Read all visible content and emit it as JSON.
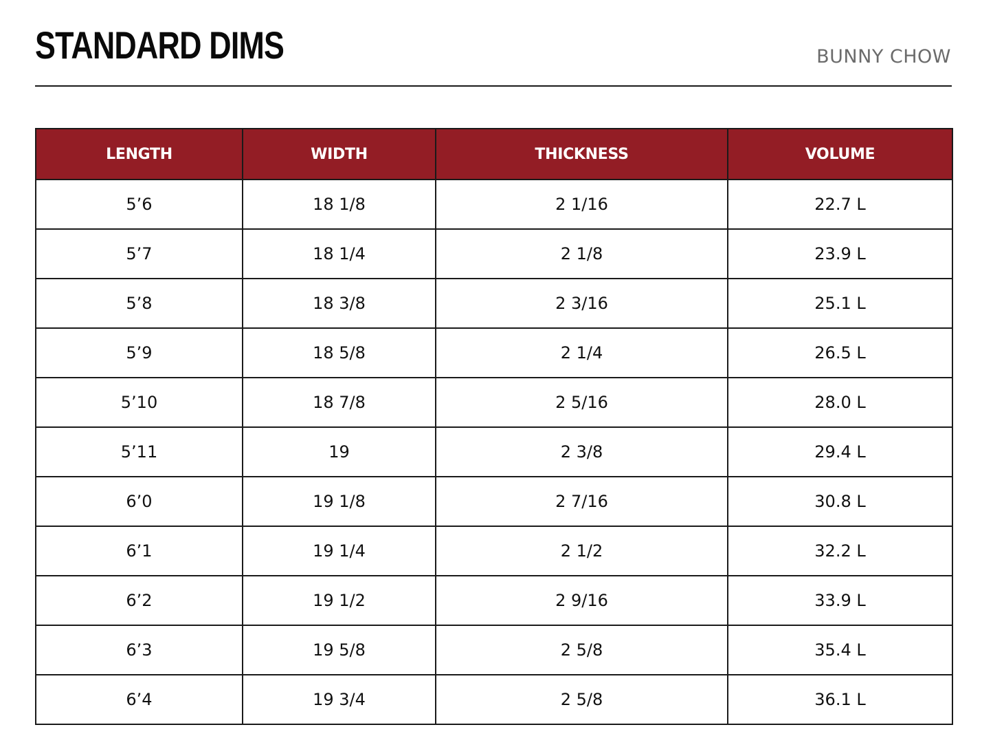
{
  "header": {
    "title": "STANDARD DIMS",
    "subtitle": "BUNNY CHOW"
  },
  "table": {
    "header_bg_color": "#931d25",
    "columns": [
      "LENGTH",
      "WIDTH",
      "THICKNESS",
      "VOLUME"
    ],
    "rows": [
      [
        "5’6",
        "18 1/8",
        "2 1/16",
        "22.7 L"
      ],
      [
        "5’7",
        "18 1/4",
        "2 1/8",
        "23.9 L"
      ],
      [
        "5’8",
        "18 3/8",
        "2 3/16",
        "25.1 L"
      ],
      [
        "5’9",
        "18 5/8",
        "2 1/4",
        "26.5 L"
      ],
      [
        "5’10",
        "18 7/8",
        "2 5/16",
        "28.0 L"
      ],
      [
        "5’11",
        "19",
        "2 3/8",
        "29.4 L"
      ],
      [
        "6’0",
        "19 1/8",
        "2 7/16",
        "30.8 L"
      ],
      [
        "6’1",
        "19 1/4",
        "2 1/2",
        "32.2 L"
      ],
      [
        "6’2",
        "19 1/2",
        "2 9/16",
        "33.9 L"
      ],
      [
        "6’3",
        "19 5/8",
        "2 5/8",
        "35.4 L"
      ],
      [
        "6’4",
        "19 3/4",
        "2 5/8",
        "36.1 L"
      ]
    ]
  }
}
